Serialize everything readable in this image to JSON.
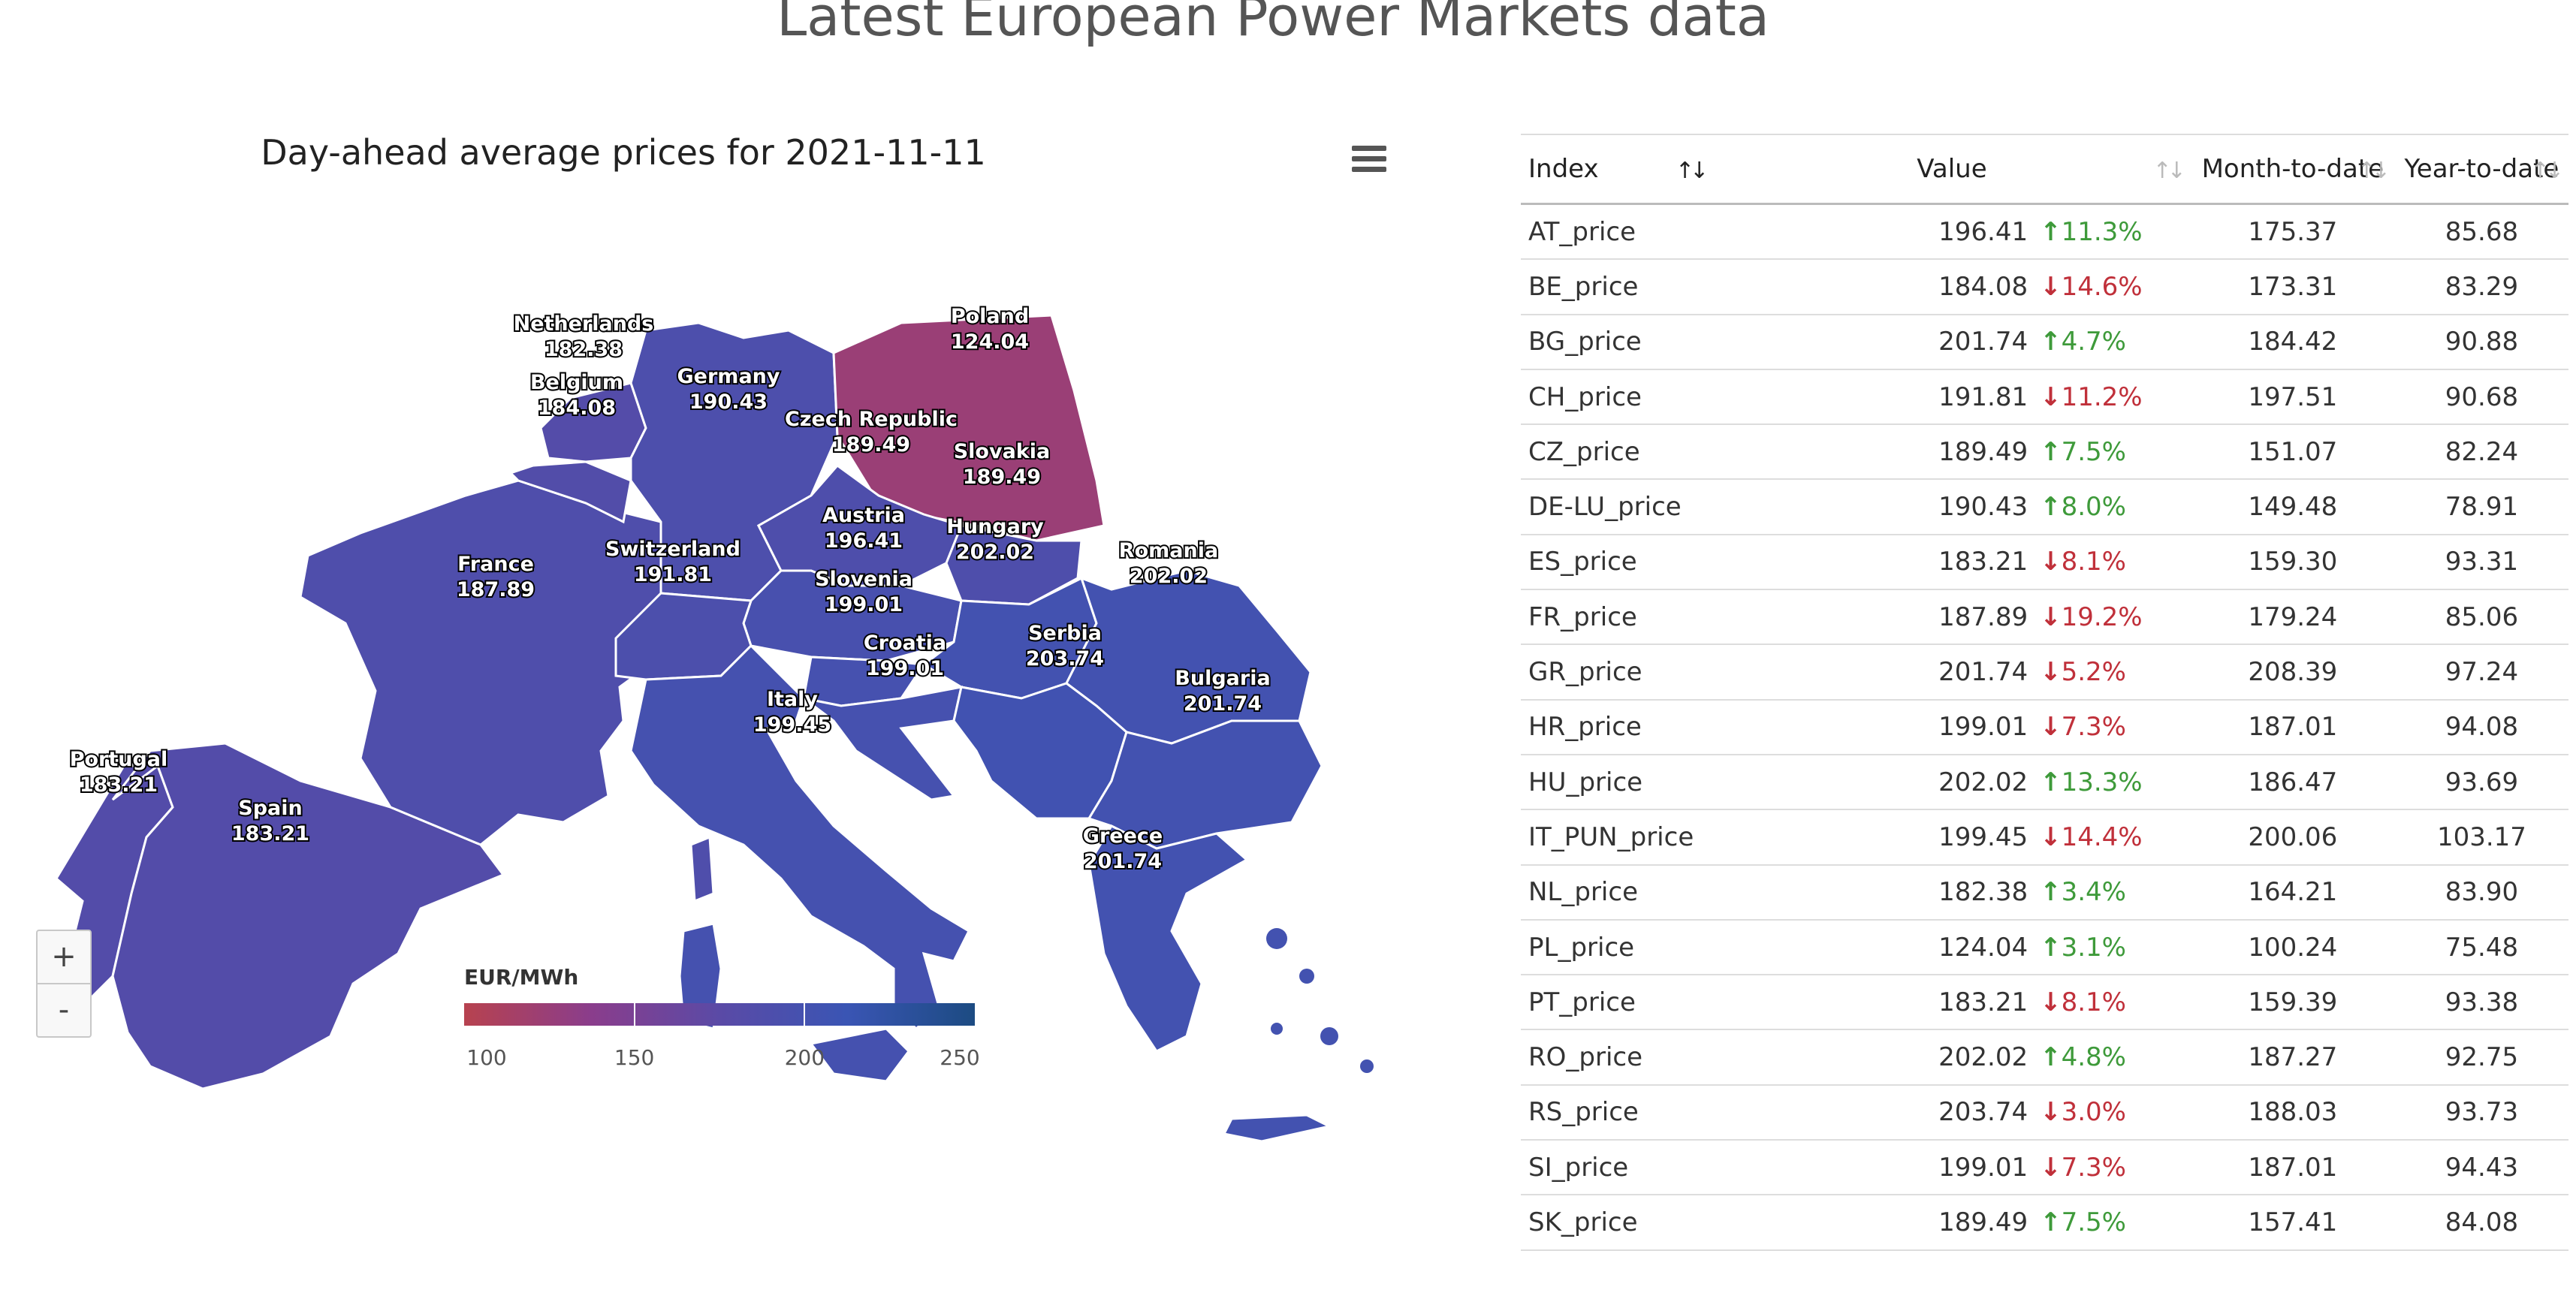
{
  "page_title": "Latest European Power Markets data",
  "map": {
    "title": "Day-ahead average prices for 2021-11-11",
    "menu_icon": "hamburger-menu-icon",
    "zoom_in_label": "+",
    "zoom_out_label": "-",
    "legend": {
      "title": "EUR/MWh",
      "min": 100,
      "max": 250,
      "ticks": [
        "100",
        "150",
        "200",
        "250"
      ],
      "colors": [
        "#b7424f",
        "#8a3d8c",
        "#5a4aa6",
        "#3a55b4",
        "#1c4b82"
      ]
    },
    "countries": [
      {
        "name": "Netherlands",
        "value": "182.38"
      },
      {
        "name": "Belgium",
        "value": "184.08"
      },
      {
        "name": "Germany",
        "value": "190.43"
      },
      {
        "name": "Poland",
        "value": "124.04"
      },
      {
        "name": "Czech Republic",
        "value": "189.49"
      },
      {
        "name": "Slovakia",
        "value": "189.49"
      },
      {
        "name": "Austria",
        "value": "196.41"
      },
      {
        "name": "Hungary",
        "value": "202.02"
      },
      {
        "name": "Romania",
        "value": "202.02"
      },
      {
        "name": "France",
        "value": "187.89"
      },
      {
        "name": "Switzerland",
        "value": "191.81"
      },
      {
        "name": "Slovenia",
        "value": "199.01"
      },
      {
        "name": "Croatia",
        "value": "199.01"
      },
      {
        "name": "Serbia",
        "value": "203.74"
      },
      {
        "name": "Bulgaria",
        "value": "201.74"
      },
      {
        "name": "Italy",
        "value": "199.45"
      },
      {
        "name": "Portugal",
        "value": "183.21"
      },
      {
        "name": "Spain",
        "value": "183.21"
      },
      {
        "name": "Greece",
        "value": "201.74"
      }
    ]
  },
  "table": {
    "columns": [
      "Index",
      "Value",
      "Month-to-date",
      "Year-to-date"
    ],
    "rows": [
      {
        "index": "AT_price",
        "value": "196.41",
        "dir": "up",
        "change": "11.3%",
        "mtd": "175.37",
        "ytd": "85.68"
      },
      {
        "index": "BE_price",
        "value": "184.08",
        "dir": "down",
        "change": "14.6%",
        "mtd": "173.31",
        "ytd": "83.29"
      },
      {
        "index": "BG_price",
        "value": "201.74",
        "dir": "up",
        "change": "4.7%",
        "mtd": "184.42",
        "ytd": "90.88"
      },
      {
        "index": "CH_price",
        "value": "191.81",
        "dir": "down",
        "change": "11.2%",
        "mtd": "197.51",
        "ytd": "90.68"
      },
      {
        "index": "CZ_price",
        "value": "189.49",
        "dir": "up",
        "change": "7.5%",
        "mtd": "151.07",
        "ytd": "82.24"
      },
      {
        "index": "DE-LU_price",
        "value": "190.43",
        "dir": "up",
        "change": "8.0%",
        "mtd": "149.48",
        "ytd": "78.91"
      },
      {
        "index": "ES_price",
        "value": "183.21",
        "dir": "down",
        "change": "8.1%",
        "mtd": "159.30",
        "ytd": "93.31"
      },
      {
        "index": "FR_price",
        "value": "187.89",
        "dir": "down",
        "change": "19.2%",
        "mtd": "179.24",
        "ytd": "85.06"
      },
      {
        "index": "GR_price",
        "value": "201.74",
        "dir": "down",
        "change": "5.2%",
        "mtd": "208.39",
        "ytd": "97.24"
      },
      {
        "index": "HR_price",
        "value": "199.01",
        "dir": "down",
        "change": "7.3%",
        "mtd": "187.01",
        "ytd": "94.08"
      },
      {
        "index": "HU_price",
        "value": "202.02",
        "dir": "up",
        "change": "13.3%",
        "mtd": "186.47",
        "ytd": "93.69"
      },
      {
        "index": "IT_PUN_price",
        "value": "199.45",
        "dir": "down",
        "change": "14.4%",
        "mtd": "200.06",
        "ytd": "103.17"
      },
      {
        "index": "NL_price",
        "value": "182.38",
        "dir": "up",
        "change": "3.4%",
        "mtd": "164.21",
        "ytd": "83.90"
      },
      {
        "index": "PL_price",
        "value": "124.04",
        "dir": "up",
        "change": "3.1%",
        "mtd": "100.24",
        "ytd": "75.48"
      },
      {
        "index": "PT_price",
        "value": "183.21",
        "dir": "down",
        "change": "8.1%",
        "mtd": "159.39",
        "ytd": "93.38"
      },
      {
        "index": "RO_price",
        "value": "202.02",
        "dir": "up",
        "change": "4.8%",
        "mtd": "187.27",
        "ytd": "92.75"
      },
      {
        "index": "RS_price",
        "value": "203.74",
        "dir": "down",
        "change": "3.0%",
        "mtd": "188.03",
        "ytd": "93.73"
      },
      {
        "index": "SI_price",
        "value": "199.01",
        "dir": "down",
        "change": "7.3%",
        "mtd": "187.01",
        "ytd": "94.43"
      },
      {
        "index": "SK_price",
        "value": "189.49",
        "dir": "up",
        "change": "7.5%",
        "mtd": "157.41",
        "ytd": "84.08"
      }
    ]
  }
}
